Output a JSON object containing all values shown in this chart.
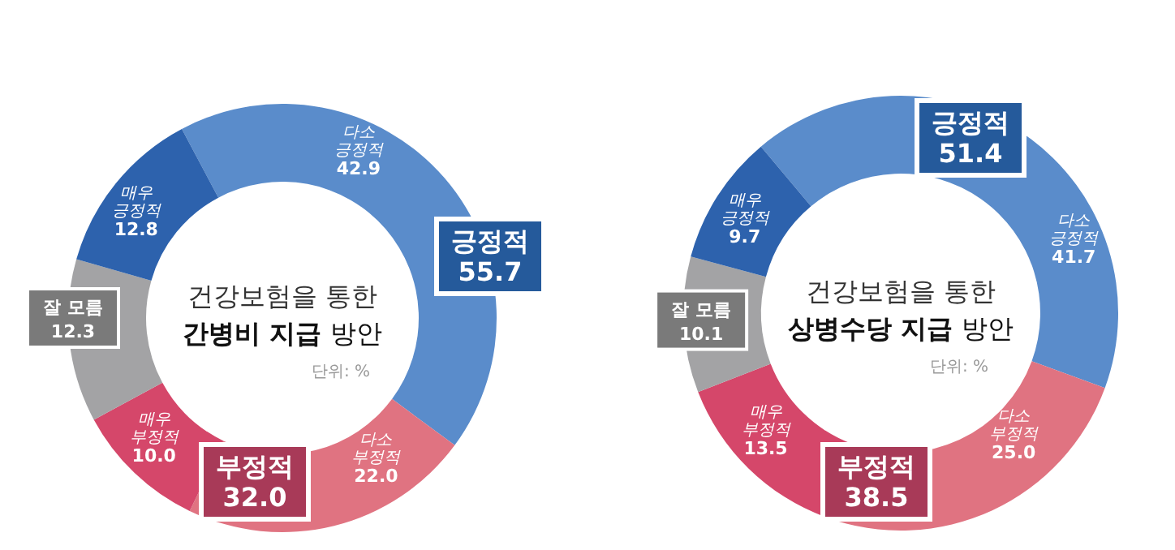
{
  "chart_data": [
    {
      "type": "donut",
      "title": "건강보험을 통한\n간병비 지급 방안",
      "categories": [
        "다소 긍정적",
        "다소 부정적",
        "매우 부정적",
        "잘 모름",
        "매우 긍정적"
      ],
      "values": [
        42.9,
        22.0,
        10.0,
        12.3,
        12.8
      ],
      "value_labels": [
        "42.9",
        "22.0",
        "10.0",
        "12.3",
        "12.8"
      ],
      "colors": [
        "#5a8ccb",
        "#e07381",
        "#d5476a",
        "#a3a3a5",
        "#2d62ad"
      ],
      "data_labels": true,
      "annotations": [
        "긍정적\n55.7",
        "부정적\n32.0",
        "단위: %"
      ]
    },
    {
      "type": "donut",
      "title": "건강보험을 통한\n상병수당 지급 방안",
      "categories": [
        "다소 긍정적",
        "다소 부정적",
        "매우 부정적",
        "잘 모름",
        "매우 긍정적"
      ],
      "values": [
        41.7,
        25.0,
        13.5,
        10.1,
        9.7
      ],
      "value_labels": [
        "41.7",
        "25.0",
        "13.5",
        "10.1",
        "9.7"
      ],
      "colors": [
        "#5a8ccb",
        "#e07381",
        "#d5476a",
        "#a3a3a5",
        "#2d62ad"
      ],
      "data_labels": true,
      "annotations": [
        "긍정적\n51.4",
        "부정적\n38.5",
        "단위: %"
      ]
    }
  ]
}
